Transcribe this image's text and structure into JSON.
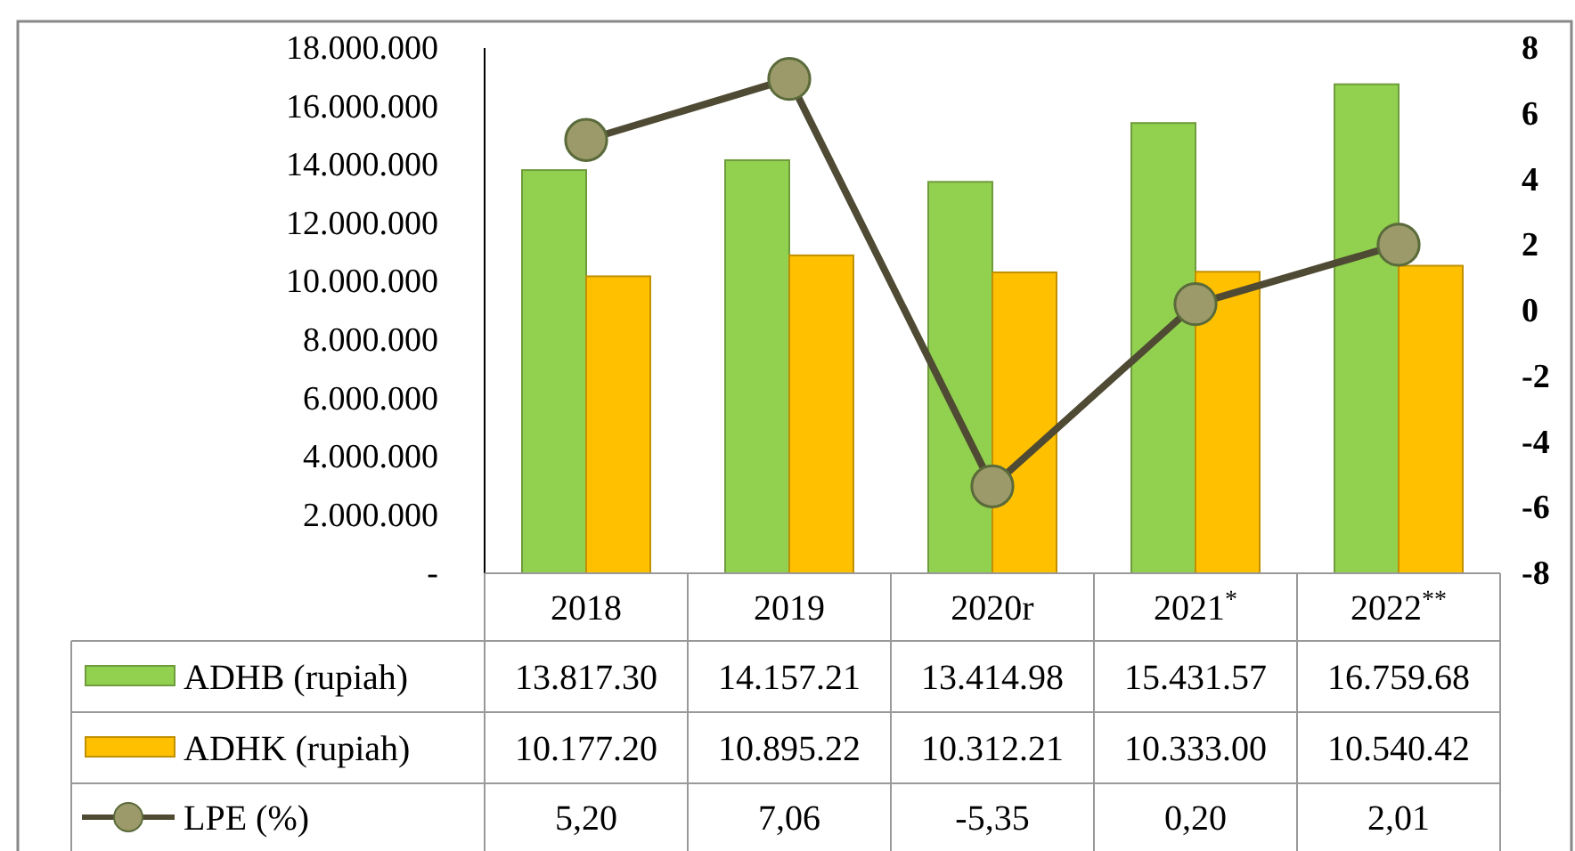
{
  "chart_data": {
    "type": "bar",
    "categories": [
      "2018",
      "2019",
      "2020r",
      "2021$^{*}$",
      "2022$^{**}$"
    ],
    "series": [
      {
        "name": "ADHB (rupiah)",
        "color": "#92d050",
        "values": [
          13817300,
          14157210,
          13414980,
          15431570,
          16759680
        ],
        "value_labels": [
          "13.817.30",
          "14.157.21",
          "13.414.98",
          "15.431.57",
          "16.759.68"
        ]
      },
      {
        "name": "ADHK (rupiah)",
        "color": "#ffc000",
        "values": [
          10177200,
          10895220,
          10312210,
          10333000,
          10540420
        ],
        "value_labels": [
          "10.177.20",
          "10.895.22",
          "10.312.21",
          "10.333.00",
          "10.540.42"
        ]
      },
      {
        "name": "LPE (%)",
        "type": "line",
        "axis": "y2",
        "color": "#4f4a33",
        "values": [
          5.2,
          7.06,
          -5.35,
          0.2,
          2.01
        ],
        "value_labels": [
          "5,20",
          "7,06",
          "-5,35",
          "0,20",
          "2,01"
        ]
      }
    ],
    "ylim": [
      0,
      18000000
    ],
    "yticks": [
      {
        "value": 0,
        "label": "-"
      },
      {
        "value": 2000000,
        "label": "2.000.000"
      },
      {
        "value": 4000000,
        "label": "4.000.000"
      },
      {
        "value": 6000000,
        "label": "6.000.000"
      },
      {
        "value": 8000000,
        "label": "8.000.000"
      },
      {
        "value": 10000000,
        "label": "10.000.000"
      },
      {
        "value": 12000000,
        "label": "12.000.000"
      },
      {
        "value": 14000000,
        "label": "14.000.000"
      },
      {
        "value": 16000000,
        "label": "16.000.000"
      },
      {
        "value": 18000000,
        "label": "18.000.000"
      }
    ],
    "y2lim": [
      -8,
      8
    ],
    "y2ticks": [
      -8,
      -6,
      -4,
      -2,
      0,
      2,
      4,
      6,
      8
    ],
    "marker": "circle",
    "legend": "bottom",
    "grid": false
  }
}
